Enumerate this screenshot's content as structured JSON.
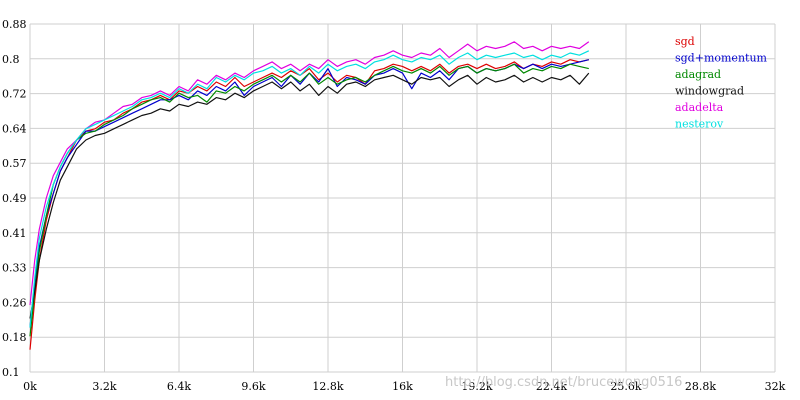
{
  "chart_data": {
    "type": "line",
    "title": "",
    "xlabel": "",
    "ylabel": "",
    "xlim": [
      0,
      32000
    ],
    "ylim": [
      0.1,
      0.88
    ],
    "x_ticks": [
      "0k",
      "3.2k",
      "6.4k",
      "9.6k",
      "12.8k",
      "16k",
      "19.2k",
      "22.4k",
      "25.6k",
      "28.8k",
      "32k"
    ],
    "y_ticks": [
      "0.1",
      "0.18",
      "0.26",
      "0.33",
      "0.41",
      "0.49",
      "0.57",
      "0.64",
      "0.72",
      "0.8",
      "0.88"
    ],
    "grid": true,
    "legend_position": "top-right",
    "x": [
      0,
      200,
      400,
      700,
      1000,
      1300,
      1600,
      2000,
      2400,
      2800,
      3200,
      3600,
      4000,
      4400,
      4800,
      5200,
      5600,
      6000,
      6400,
      6800,
      7200,
      7600,
      8000,
      8400,
      8800,
      9200,
      9600,
      10000,
      10400,
      10800,
      11200,
      11600,
      12000,
      12400,
      12800,
      13200,
      13600,
      14000,
      14400,
      14800,
      15200,
      15600,
      16000,
      16400,
      16800,
      17200,
      17600,
      18000,
      18400,
      18800,
      19200,
      19600,
      20000,
      20400,
      20800,
      21200,
      21600,
      22000,
      22400,
      22800,
      23200,
      23600,
      24000
    ],
    "series": [
      {
        "name": "sgd",
        "color": "#dd0000",
        "values": [
          0.15,
          0.26,
          0.35,
          0.44,
          0.5,
          0.55,
          0.58,
          0.62,
          0.64,
          0.645,
          0.66,
          0.665,
          0.68,
          0.69,
          0.705,
          0.71,
          0.72,
          0.71,
          0.73,
          0.725,
          0.74,
          0.73,
          0.75,
          0.74,
          0.76,
          0.74,
          0.75,
          0.76,
          0.77,
          0.76,
          0.775,
          0.765,
          0.78,
          0.755,
          0.77,
          0.75,
          0.765,
          0.76,
          0.745,
          0.775,
          0.78,
          0.79,
          0.785,
          0.775,
          0.785,
          0.775,
          0.79,
          0.77,
          0.785,
          0.79,
          0.78,
          0.79,
          0.78,
          0.785,
          0.795,
          0.78,
          0.79,
          0.785,
          0.795,
          0.79,
          0.8,
          0.795,
          0.8
        ]
      },
      {
        "name": "sgd+momentum",
        "color": "#0000cc",
        "values": [
          0.2,
          0.3,
          0.38,
          0.45,
          0.5,
          0.55,
          0.58,
          0.61,
          0.64,
          0.64,
          0.65,
          0.66,
          0.67,
          0.68,
          0.69,
          0.7,
          0.71,
          0.71,
          0.72,
          0.71,
          0.73,
          0.72,
          0.74,
          0.73,
          0.75,
          0.72,
          0.74,
          0.75,
          0.76,
          0.74,
          0.765,
          0.745,
          0.77,
          0.75,
          0.78,
          0.74,
          0.76,
          0.755,
          0.745,
          0.765,
          0.77,
          0.78,
          0.77,
          0.735,
          0.77,
          0.76,
          0.775,
          0.755,
          0.78,
          0.785,
          0.77,
          0.78,
          0.775,
          0.78,
          0.79,
          0.78,
          0.79,
          0.78,
          0.79,
          0.785,
          0.79,
          0.795,
          0.8
        ]
      },
      {
        "name": "adagrad",
        "color": "#008800",
        "values": [
          0.18,
          0.28,
          0.37,
          0.45,
          0.52,
          0.56,
          0.59,
          0.62,
          0.635,
          0.64,
          0.655,
          0.665,
          0.675,
          0.69,
          0.7,
          0.71,
          0.715,
          0.705,
          0.725,
          0.715,
          0.72,
          0.705,
          0.73,
          0.725,
          0.74,
          0.73,
          0.745,
          0.755,
          0.765,
          0.75,
          0.765,
          0.75,
          0.77,
          0.745,
          0.76,
          0.745,
          0.755,
          0.76,
          0.75,
          0.765,
          0.775,
          0.785,
          0.775,
          0.77,
          0.78,
          0.77,
          0.785,
          0.765,
          0.78,
          0.785,
          0.77,
          0.78,
          0.775,
          0.78,
          0.79,
          0.77,
          0.78,
          0.775,
          0.785,
          0.78,
          0.79,
          0.785,
          0.78
        ]
      },
      {
        "name": "windowgrad",
        "color": "#111111",
        "values": [
          0.22,
          0.28,
          0.35,
          0.42,
          0.48,
          0.53,
          0.56,
          0.6,
          0.62,
          0.63,
          0.635,
          0.645,
          0.655,
          0.665,
          0.675,
          0.68,
          0.69,
          0.685,
          0.7,
          0.695,
          0.705,
          0.7,
          0.715,
          0.71,
          0.725,
          0.715,
          0.73,
          0.74,
          0.75,
          0.735,
          0.75,
          0.73,
          0.745,
          0.72,
          0.74,
          0.725,
          0.745,
          0.75,
          0.74,
          0.755,
          0.76,
          0.765,
          0.755,
          0.745,
          0.76,
          0.755,
          0.76,
          0.74,
          0.755,
          0.765,
          0.745,
          0.76,
          0.75,
          0.755,
          0.765,
          0.75,
          0.76,
          0.75,
          0.76,
          0.755,
          0.765,
          0.745,
          0.77
        ]
      },
      {
        "name": "adadelta",
        "color": "#e000e0",
        "values": [
          0.25,
          0.35,
          0.42,
          0.49,
          0.54,
          0.57,
          0.6,
          0.62,
          0.645,
          0.66,
          0.665,
          0.68,
          0.695,
          0.7,
          0.715,
          0.72,
          0.73,
          0.72,
          0.74,
          0.73,
          0.755,
          0.745,
          0.765,
          0.755,
          0.77,
          0.76,
          0.775,
          0.785,
          0.795,
          0.78,
          0.79,
          0.775,
          0.79,
          0.78,
          0.8,
          0.785,
          0.795,
          0.8,
          0.79,
          0.805,
          0.81,
          0.82,
          0.81,
          0.805,
          0.815,
          0.81,
          0.825,
          0.805,
          0.82,
          0.835,
          0.82,
          0.83,
          0.825,
          0.83,
          0.84,
          0.825,
          0.83,
          0.82,
          0.83,
          0.825,
          0.83,
          0.825,
          0.84
        ]
      },
      {
        "name": "nesterov",
        "color": "#00e0e0",
        "values": [
          0.2,
          0.31,
          0.4,
          0.47,
          0.52,
          0.56,
          0.59,
          0.62,
          0.645,
          0.655,
          0.665,
          0.675,
          0.685,
          0.695,
          0.71,
          0.715,
          0.725,
          0.715,
          0.735,
          0.725,
          0.745,
          0.735,
          0.76,
          0.75,
          0.765,
          0.755,
          0.77,
          0.775,
          0.785,
          0.77,
          0.78,
          0.765,
          0.785,
          0.77,
          0.79,
          0.775,
          0.785,
          0.79,
          0.78,
          0.795,
          0.8,
          0.81,
          0.8,
          0.795,
          0.805,
          0.8,
          0.81,
          0.79,
          0.805,
          0.815,
          0.8,
          0.81,
          0.805,
          0.81,
          0.815,
          0.805,
          0.81,
          0.8,
          0.81,
          0.805,
          0.815,
          0.81,
          0.82
        ]
      }
    ]
  },
  "watermark": "http://blog.csdn.net/brucewong0516"
}
